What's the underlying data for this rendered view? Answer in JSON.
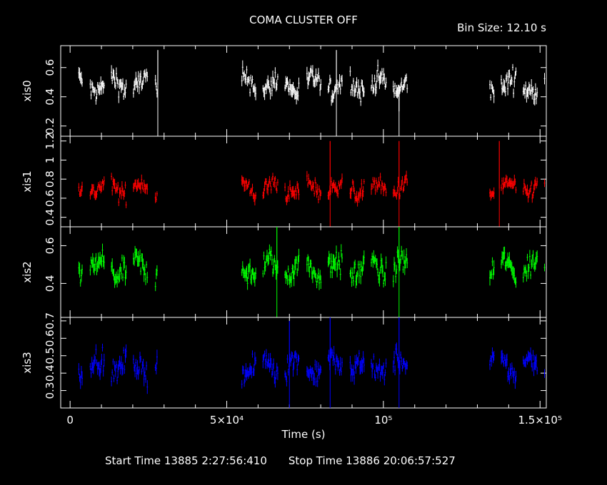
{
  "title": "COMA CLUSTER OFF",
  "bin_size": "Bin Size: 12.10 s",
  "footer": {
    "start": "Start Time 13885  2:27:56:410",
    "stop": "Stop Time 13886 20:06:57:527"
  },
  "colors": {
    "xis0": "#ffffff",
    "xis1": "#ff0000",
    "xis2": "#00ff00",
    "xis3": "#0000ff",
    "axes": "#ffffff",
    "background": "#000000"
  },
  "chart_data": {
    "type": "line",
    "title": "COMA CLUSTER OFF",
    "xlabel": "Time (s)",
    "xlim": [
      -3000,
      152000
    ],
    "x_ticks": [
      {
        "value": 0,
        "label": "0"
      },
      {
        "value": 50000,
        "label": "5×10⁴"
      },
      {
        "value": 100000,
        "label": "10⁵"
      },
      {
        "value": 150000,
        "label": "1.5×10⁵"
      }
    ],
    "observation_windows": [
      [
        2800,
        28000
      ],
      [
        53000,
        108000
      ],
      [
        134000,
        151500
      ]
    ],
    "panels": [
      {
        "ylabel": "xis0",
        "ylim": [
          0.13,
          0.75
        ],
        "y_ticks": [
          0.2,
          0.4,
          0.6
        ],
        "y_tick_labels": [
          "0.2",
          "0.4",
          "0.6"
        ],
        "mean": 0.48,
        "spread": 0.08
      },
      {
        "ylabel": "xis1",
        "ylim": [
          0.3,
          1.25
        ],
        "y_ticks": [
          0.4,
          0.6,
          0.8,
          1,
          1.2
        ],
        "y_tick_labels": [
          "0.4",
          "0.6",
          "0.8",
          "1",
          "1.2"
        ],
        "mean": 0.7,
        "spread": 0.1
      },
      {
        "ylabel": "xis2",
        "ylim": [
          0.22,
          0.7
        ],
        "y_ticks": [
          0.4,
          0.6
        ],
        "y_tick_labels": [
          "0.4",
          "0.6"
        ],
        "mean": 0.48,
        "spread": 0.07
      },
      {
        "ylabel": "xis3",
        "ylim": [
          0.2,
          0.72
        ],
        "y_ticks": [
          0.3,
          0.4,
          0.5,
          0.6,
          0.7
        ],
        "y_tick_labels": [
          "0.3",
          "0.4",
          "0.5",
          "0.6",
          "0.7"
        ],
        "mean": 0.44,
        "spread": 0.07
      }
    ],
    "spikes": [
      {
        "panel": 0,
        "x": 28000,
        "y": 0.72
      },
      {
        "panel": 0,
        "x": 85000,
        "y": 0.72
      },
      {
        "panel": 0,
        "x": 105000,
        "y": 0.3
      },
      {
        "panel": 1,
        "x": 83000,
        "y": 1.2
      },
      {
        "panel": 1,
        "x": 105000,
        "y": 1.2
      },
      {
        "panel": 1,
        "x": 137000,
        "y": 1.2
      },
      {
        "panel": 2,
        "x": 66000,
        "y": 0.7
      },
      {
        "panel": 2,
        "x": 105000,
        "y": 0.7
      },
      {
        "panel": 3,
        "x": 70000,
        "y": 0.7
      },
      {
        "panel": 3,
        "x": 83000,
        "y": 0.72
      },
      {
        "panel": 3,
        "x": 105000,
        "y": 0.72
      }
    ]
  }
}
